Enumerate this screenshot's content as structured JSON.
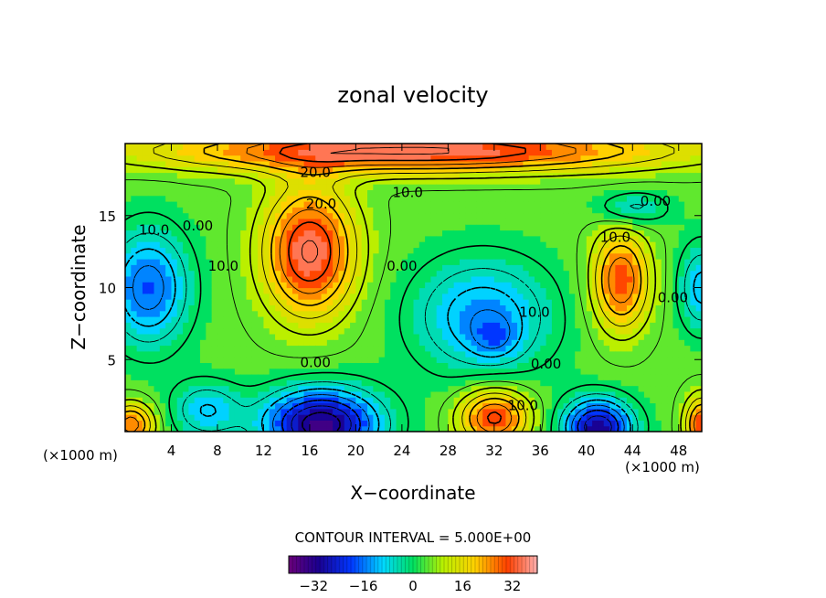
{
  "chart_data": {
    "type": "heatmap",
    "title": "zonal velocity",
    "xlabel": "X−coordinate",
    "ylabel": "Z−coordinate",
    "x_unit": "(×1000 m)",
    "x_unit_right": "(×1000 m)",
    "xlim": [
      0,
      50
    ],
    "ylim": [
      0,
      20
    ],
    "x_ticks": [
      "4",
      "8",
      "12",
      "16",
      "20",
      "24",
      "28",
      "32",
      "36",
      "40",
      "44",
      "48"
    ],
    "y_ticks": [
      "5",
      "10",
      "15"
    ],
    "contour_interval_text": "CONTOUR INTERVAL = 5.000E+00",
    "colorbar": {
      "range": [
        -40,
        40
      ],
      "tick_labels": [
        "−32",
        "−16",
        "0",
        "16",
        "32"
      ],
      "tick_values": [
        -32,
        -16,
        0,
        16,
        32
      ]
    },
    "contour_labels": [
      {
        "text": "20.0",
        "x": 16.5,
        "z": 18.0
      },
      {
        "text": "20.0",
        "x": 17.0,
        "z": 15.8
      },
      {
        "text": "10.0",
        "x": 24.5,
        "z": 16.6
      },
      {
        "text": "0.00",
        "x": 46.0,
        "z": 16.0
      },
      {
        "text": "10.0",
        "x": 2.5,
        "z": 14.0
      },
      {
        "text": "0.00",
        "x": 6.3,
        "z": 14.3
      },
      {
        "text": "10.0",
        "x": 8.5,
        "z": 11.5
      },
      {
        "text": "0.00",
        "x": 24.0,
        "z": 11.5
      },
      {
        "text": "10.0",
        "x": 42.5,
        "z": 13.5
      },
      {
        "text": "0.00",
        "x": 47.5,
        "z": 9.3
      },
      {
        "text": "10.0",
        "x": 35.5,
        "z": 8.3
      },
      {
        "text": "0.00",
        "x": 36.5,
        "z": 4.7
      },
      {
        "text": "0.00",
        "x": 16.5,
        "z": 4.8
      },
      {
        "text": "10.0",
        "x": 34.5,
        "z": 1.8
      }
    ]
  }
}
